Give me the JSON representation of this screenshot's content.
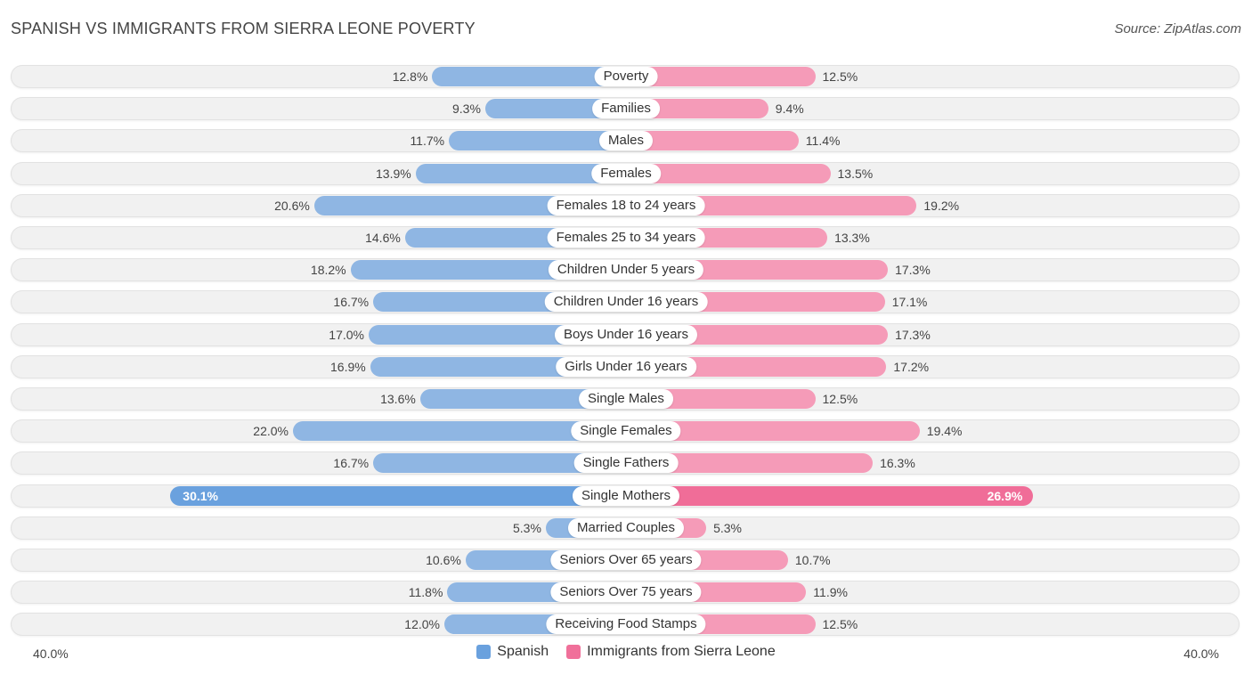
{
  "title": "SPANISH VS IMMIGRANTS FROM SIERRA LEONE POVERTY",
  "source": "Source: ZipAtlas.com",
  "colors": {
    "spanish": "#8fb6e3",
    "spanish_strong": "#6aa1de",
    "sierra_leone": "#f59bb8",
    "sierra_leone_strong": "#f06d98",
    "legend_spanish": "#6aa1de",
    "legend_sierra_leone": "#f0709a"
  },
  "chart_data": {
    "type": "bar",
    "orientation": "horizontal-diverging",
    "title": "SPANISH VS IMMIGRANTS FROM SIERRA LEONE POVERTY",
    "axis_max": 40.0,
    "axis_left_label": "40.0%",
    "axis_right_label": "40.0%",
    "categories": [
      "Poverty",
      "Families",
      "Males",
      "Females",
      "Females 18 to 24 years",
      "Females 25 to 34 years",
      "Children Under 5 years",
      "Children Under 16 years",
      "Boys Under 16 years",
      "Girls Under 16 years",
      "Single Males",
      "Single Females",
      "Single Fathers",
      "Single Mothers",
      "Married Couples",
      "Seniors Over 65 years",
      "Seniors Over 75 years",
      "Receiving Food Stamps"
    ],
    "series": [
      {
        "name": "Spanish",
        "values": [
          12.8,
          9.3,
          11.7,
          13.9,
          20.6,
          14.6,
          18.2,
          16.7,
          17.0,
          16.9,
          13.6,
          22.0,
          16.7,
          30.1,
          5.3,
          10.6,
          11.8,
          12.0
        ],
        "labels": [
          "12.8%",
          "9.3%",
          "11.7%",
          "13.9%",
          "20.6%",
          "14.6%",
          "18.2%",
          "16.7%",
          "17.0%",
          "16.9%",
          "13.6%",
          "22.0%",
          "16.7%",
          "30.1%",
          "5.3%",
          "10.6%",
          "11.8%",
          "12.0%"
        ]
      },
      {
        "name": "Immigrants from Sierra Leone",
        "values": [
          12.5,
          9.4,
          11.4,
          13.5,
          19.2,
          13.3,
          17.3,
          17.1,
          17.3,
          17.2,
          12.5,
          19.4,
          16.3,
          26.9,
          5.3,
          10.7,
          11.9,
          12.5
        ],
        "labels": [
          "12.5%",
          "9.4%",
          "11.4%",
          "13.5%",
          "19.2%",
          "13.3%",
          "17.3%",
          "17.1%",
          "17.3%",
          "17.2%",
          "12.5%",
          "19.4%",
          "16.3%",
          "26.9%",
          "5.3%",
          "10.7%",
          "11.9%",
          "12.5%"
        ]
      }
    ],
    "legend": [
      "Spanish",
      "Immigrants from Sierra Leone"
    ]
  }
}
